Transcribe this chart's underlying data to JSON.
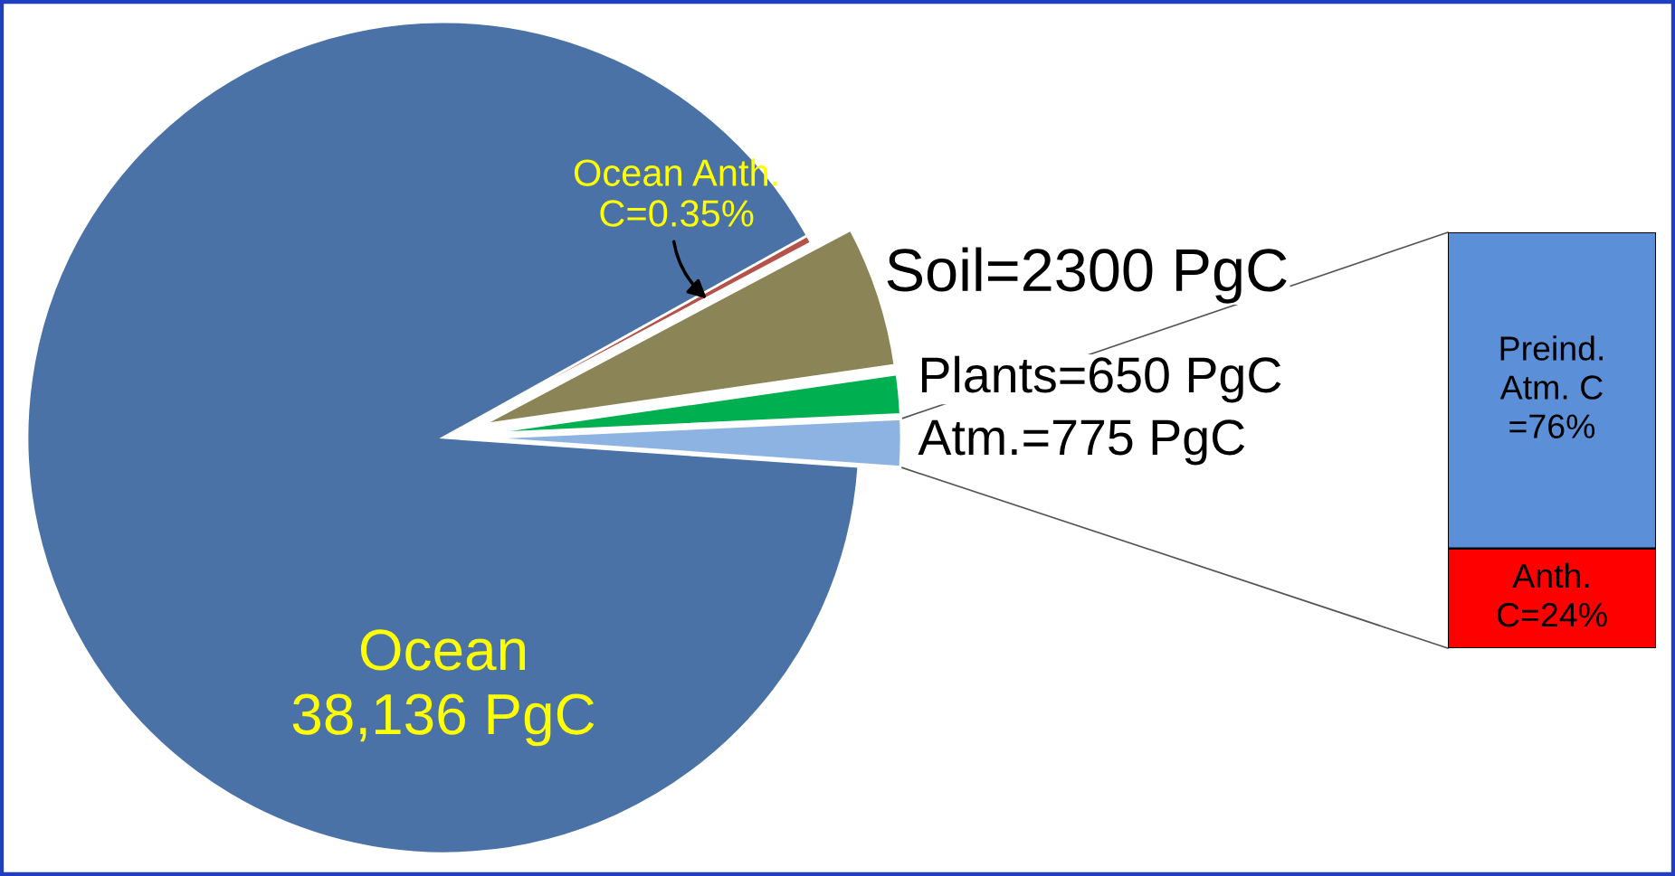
{
  "chart_data": [
    {
      "type": "pie",
      "categories": [
        "Atm.=775 PgC",
        "Plants=650 PgC",
        "Soil=2300 PgC",
        "Ocean Anth.\nC=0.35%",
        "Ocean\n38,136 PgC"
      ],
      "values": [
        775,
        650,
        2300,
        133,
        38136
      ],
      "colors": [
        "#8db3e2",
        "#00b050",
        "#8b8456",
        "#b5524a",
        "#4a72a6"
      ]
    },
    {
      "type": "bar",
      "stacked": true,
      "categories": [
        null
      ],
      "series": [
        {
          "color": "#ff0000",
          "values": [
            24
          ],
          "value_labels": [
            "Anth.\nC=24%"
          ]
        },
        {
          "color": "#5b8fd8",
          "values": [
            76
          ],
          "value_labels": [
            "Preind.\nAtm. C\n=76%"
          ]
        }
      ]
    }
  ]
}
